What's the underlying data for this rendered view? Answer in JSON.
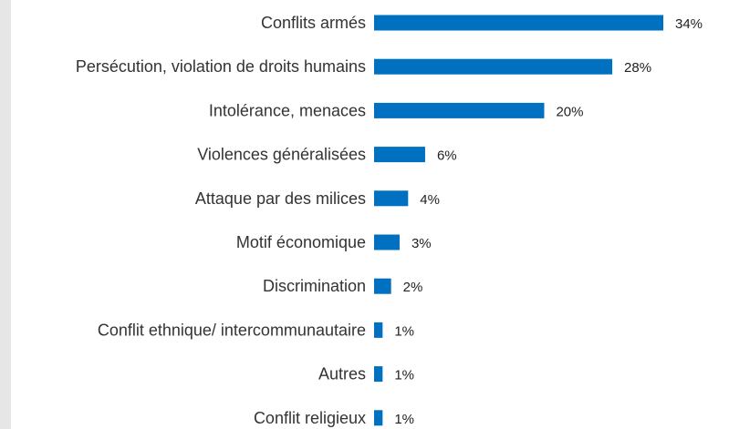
{
  "chart_data": {
    "type": "bar",
    "orientation": "horizontal",
    "categories": [
      "Conflits armés",
      "Persécution, violation de droits humains",
      "Intolérance, menaces",
      "Violences généralisées",
      "Attaque par des milices",
      "Motif économique",
      "Discrimination",
      "Conflit ethnique/ intercommunautaire",
      "Autres",
      "Conflit religieux"
    ],
    "values": [
      34,
      28,
      20,
      6,
      4,
      3,
      2,
      1,
      1,
      1
    ],
    "value_labels": [
      "34%",
      "28%",
      "20%",
      "6%",
      "4%",
      "3%",
      "2%",
      "1%",
      "1%",
      "1%"
    ],
    "unit": "%",
    "title": "",
    "xlabel": "",
    "ylabel": "",
    "xlim": [
      0,
      34
    ],
    "grid": false,
    "legend": "none",
    "bar_color": "#0070c0"
  }
}
